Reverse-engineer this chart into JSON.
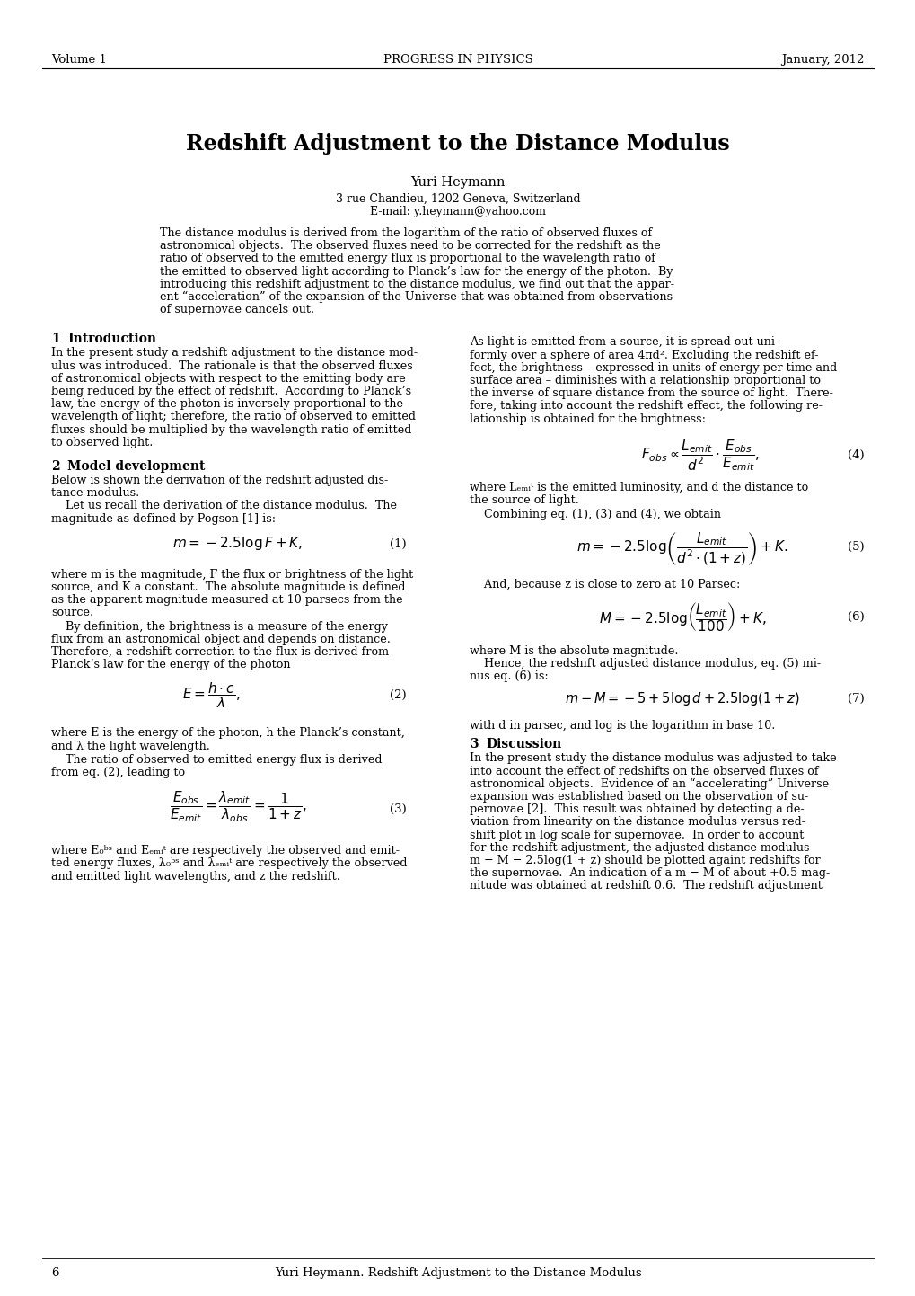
{
  "header_left": "Volume 1",
  "header_center": "PROGRESS IN PHYSICS",
  "header_right": "January, 2012",
  "title": "Redshift Adjustment to the Distance Modulus",
  "author": "Yuri Heymann",
  "affiliation1": "3 rue Chandieu, 1202 Geneva, Switzerland",
  "affiliation2": "E-mail: y.heymann@yahoo.com",
  "abstract_lines": [
    "The distance modulus is derived from the logarithm of the ratio of observed fluxes of",
    "astronomical objects.  The observed fluxes need to be corrected for the redshift as the",
    "ratio of observed to the emitted energy flux is proportional to the wavelength ratio of",
    "the emitted to observed light according to Planck’s law for the energy of the photon.  By",
    "introducing this redshift adjustment to the distance modulus, we find out that the appar-",
    "ent “acceleration” of the expansion of the Universe that was obtained from observations",
    "of supernovae cancels out."
  ],
  "sec1_title": "1    Introduction",
  "sec1_left_lines": [
    "In the present study a redshift adjustment to the distance mod-",
    "ulus was introduced.  The rationale is that the observed fluxes",
    "of astronomical objects with respect to the emitting body are",
    "being reduced by the effect of redshift.  According to Planck’s",
    "law, the energy of the photon is inversely proportional to the",
    "wavelength of light; therefore, the ratio of observed to emitted",
    "fluxes should be multiplied by the wavelength ratio of emitted",
    "to observed light."
  ],
  "sec1_right_lines": [
    "As light is emitted from a source, it is spread out uni-",
    "formly over a sphere of area 4πd². Excluding the redshift ef-",
    "fect, the brightness – expressed in units of energy per time and",
    "surface area – diminishes with a relationship proportional to",
    "the inverse of square distance from the source of light.  There-",
    "fore, taking into account the redshift effect, the following re-",
    "lationship is obtained for the brightness:"
  ],
  "sec2_title": "2    Model development",
  "sec2_left_lines": [
    "Below is shown the derivation of the redshift adjusted dis-",
    "tance modulus.",
    "    Let us recall the derivation of the distance modulus.  The",
    "magnitude as defined by Pogson [1] is:"
  ],
  "eq1_desc_lines": [
    "where m is the magnitude, F the flux or brightness of the light",
    "source, and K a constant.  The absolute magnitude is defined",
    "as the apparent magnitude measured at 10 parsecs from the",
    "source."
  ],
  "eq2_pre_lines": [
    "    By definition, the brightness is a measure of the energy",
    "flux from an astronomical object and depends on distance.",
    "Therefore, a redshift correction to the flux is derived from",
    "Planck’s law for the energy of the photon"
  ],
  "eq2_post_lines": [
    "where E is the energy of the photon, h the Planck’s constant,",
    "and λ the light wavelength."
  ],
  "eq3_pre_lines": [
    "    The ratio of observed to emitted energy flux is derived",
    "from eq. (2), leading to"
  ],
  "eq3_desc_lines": [
    "where E₀ᵇˢ and Eₑₘᵢᵗ are respectively the observed and emit-",
    "ted energy fluxes, λ₀ᵇˢ and λₑₘᵢᵗ are respectively the observed",
    "and emitted light wavelengths, and z the redshift."
  ],
  "eq4_desc_lines": [
    "where Lₑₘᵢᵗ is the emitted luminosity, and d the distance to",
    "the source of light."
  ],
  "eq5_pre": "    Combining eq. (1), (3) and (4), we obtain",
  "eq6_pre": "    And, because z is close to zero at 10 Parsec:",
  "eq6_desc": "where M is the absolute magnitude.",
  "eq7_pre_lines": [
    "    Hence, the redshift adjusted distance modulus, eq. (5) mi-",
    "nus eq. (6) is:"
  ],
  "eq7_post": "with d in parsec, and log is the logarithm in base 10.",
  "sec3_title": "3    Discussion",
  "sec3_right_lines": [
    "In the present study the distance modulus was adjusted to take",
    "into account the effect of redshifts on the observed fluxes of",
    "astronomical objects.  Evidence of an “accelerating” Universe",
    "expansion was established based on the observation of su-",
    "pernovae [2].  This result was obtained by detecting a de-",
    "viation from linearity on the distance modulus versus red-",
    "shift plot in log scale for supernovae.  In order to account",
    "for the redshift adjustment, the adjusted distance modulus",
    "m − M − 2.5log(1 + z) should be plotted againt redshifts for",
    "the supernovae.  An indication of a m − M of about +0.5 mag-",
    "nitude was obtained at redshift 0.6.  The redshift adjustment"
  ],
  "footer_page": "6",
  "footer_text": "Yuri Heymann. Redshift Adjustment to the Distance Modulus"
}
